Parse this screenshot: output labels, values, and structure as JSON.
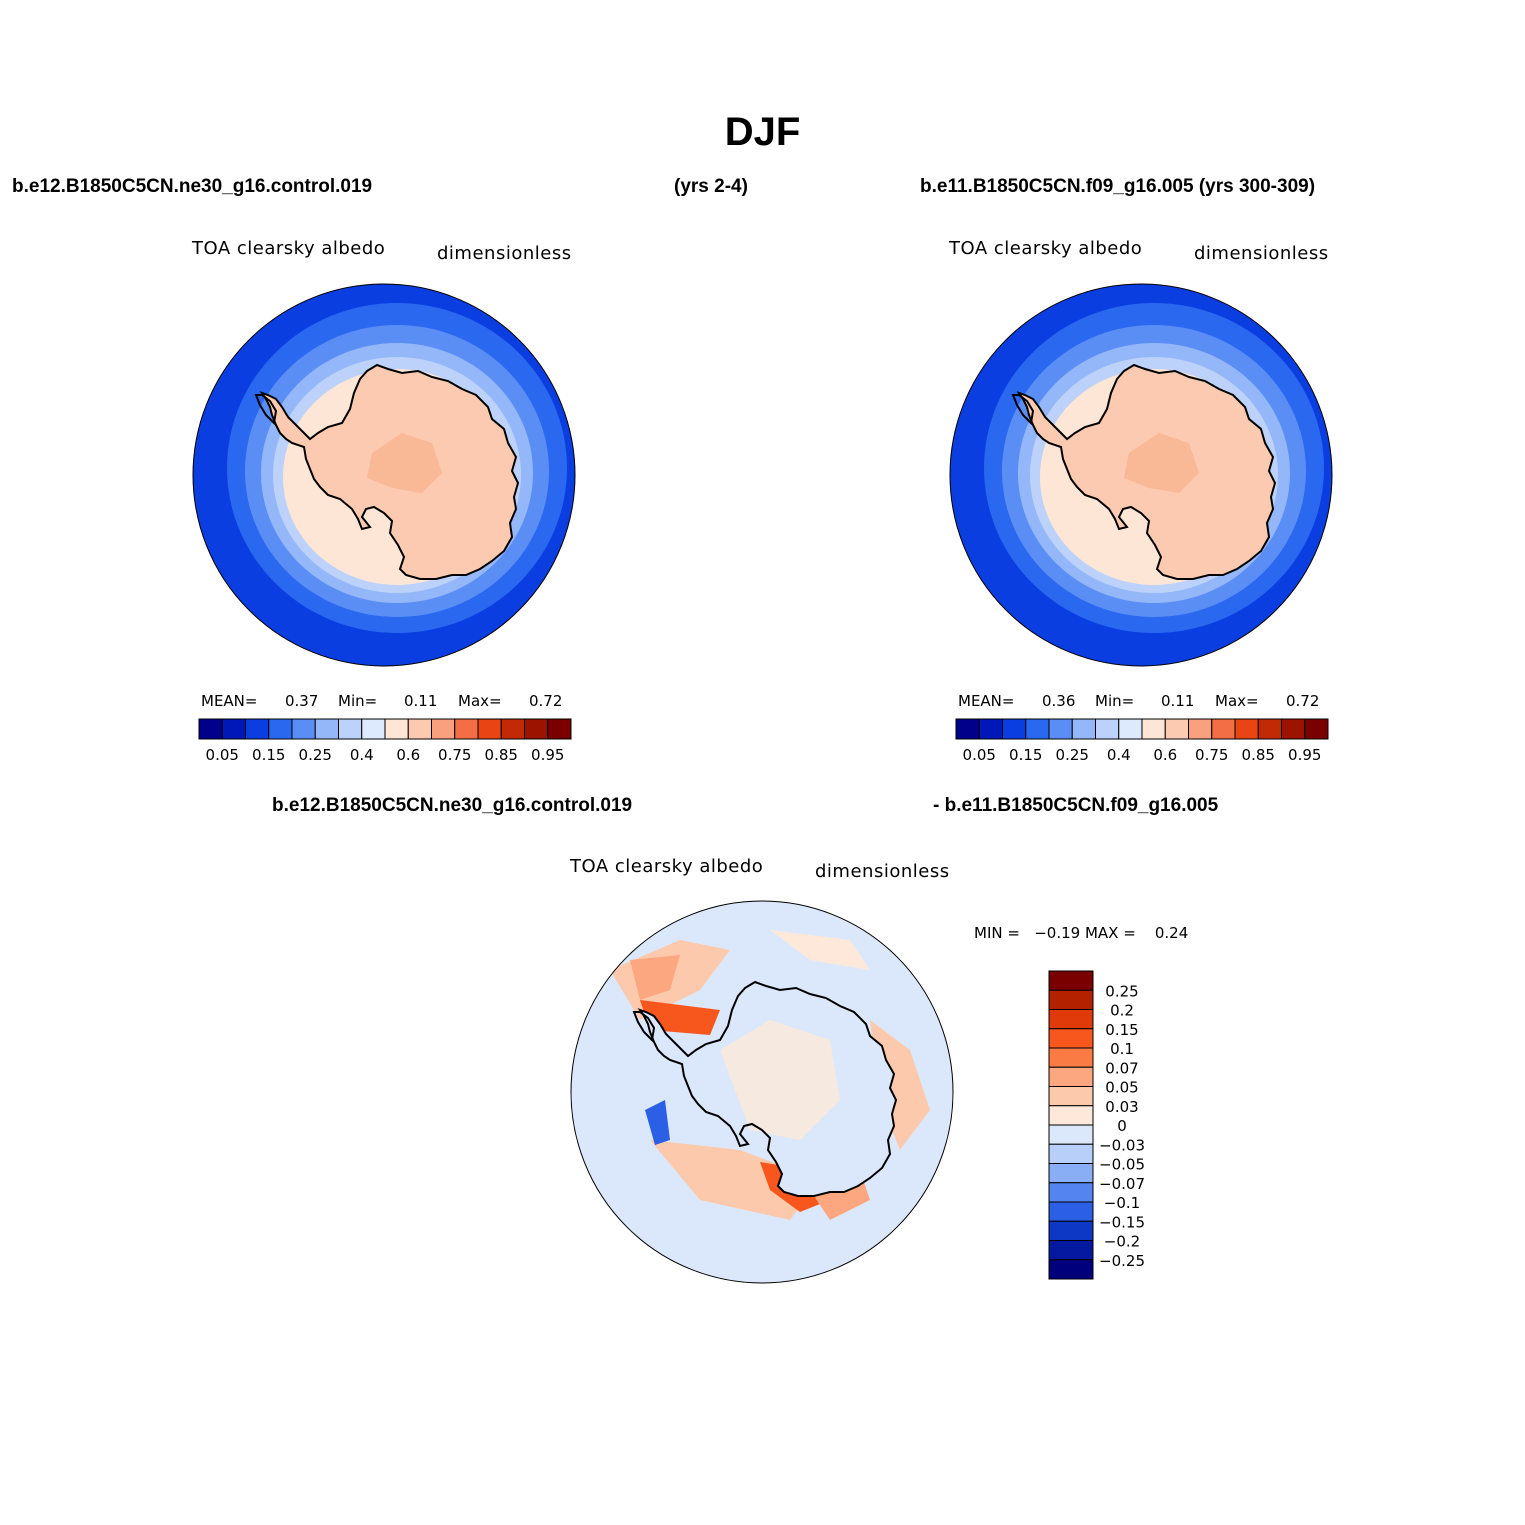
{
  "title": "DJF",
  "header": {
    "case1": "b.e12.B1850C5CN.ne30_g16.control.019",
    "case1_years": "(yrs 2-4)",
    "case2": "b.e11.B1850C5CN.f09_g16.005 (yrs 300-309)",
    "diff_left": "b.e12.B1850C5CN.ne30_g16.control.019",
    "diff_right": "- b.e11.B1850C5CN.f09_g16.005"
  },
  "panels": {
    "p1": {
      "variable": "TOA clearsky albedo",
      "units": "dimensionless",
      "mean_label": "MEAN=",
      "mean": "0.37",
      "min_label": "Min=",
      "min": "0.11",
      "max_label": "Max=",
      "max": "0.72"
    },
    "p2": {
      "variable": "TOA clearsky albedo",
      "units": "dimensionless",
      "mean_label": "MEAN=",
      "mean": "0.36",
      "min_label": "Min=",
      "min": "0.11",
      "max_label": "Max=",
      "max": "0.72"
    },
    "p3": {
      "variable": "TOA clearsky albedo",
      "units": "dimensionless",
      "minmax": "MIN =   −0.19 MAX =    0.24"
    }
  },
  "colorbar_h": {
    "labels": [
      "0.05",
      "0.15",
      "0.25",
      "0.4",
      "0.6",
      "0.75",
      "0.85",
      "0.95"
    ],
    "colors": [
      "#00008a",
      "#0018b8",
      "#0b3ee0",
      "#2a68f0",
      "#5b8ef5",
      "#93b7f8",
      "#bcd2fb",
      "#dde9fd",
      "#fde6d6",
      "#fccab0",
      "#f9a17f",
      "#f36e44",
      "#e94514",
      "#c22a05",
      "#9c1300",
      "#7a0000"
    ]
  },
  "colorbar_v": {
    "labels": [
      "0.25",
      "0.2",
      "0.15",
      "0.1",
      "0.07",
      "0.05",
      "0.03",
      "0",
      "−0.03",
      "−0.05",
      "−0.07",
      "−0.1",
      "−0.15",
      "−0.2",
      "−0.25"
    ],
    "colors": [
      "#7a0000",
      "#b32100",
      "#e03a0a",
      "#f7561c",
      "#fb7b45",
      "#fca77f",
      "#fdc9ac",
      "#fde8d9",
      "#dbe8fb",
      "#b7cff9",
      "#8aaef5",
      "#5384ef",
      "#2a5fe6",
      "#0c38c5",
      "#0418a0",
      "#00007c"
    ]
  },
  "map_colors": {
    "ocean_deep": "#0b3ee0",
    "ocean_mid": "#2a68f0",
    "ring1": "#5b8ef5",
    "ring2": "#93b7f8",
    "ring3": "#bcd2fb",
    "shelf": "#fde6d6",
    "continent": "#fccab0",
    "plateau": "#f9b896",
    "diff_bg": "#dbe8fb",
    "diff_warm1": "#fde8d9",
    "diff_warm2": "#fdc9ac",
    "diff_warm3": "#fca77f",
    "diff_warm4": "#f7561c",
    "diff_cold": "#2a5fe6"
  }
}
